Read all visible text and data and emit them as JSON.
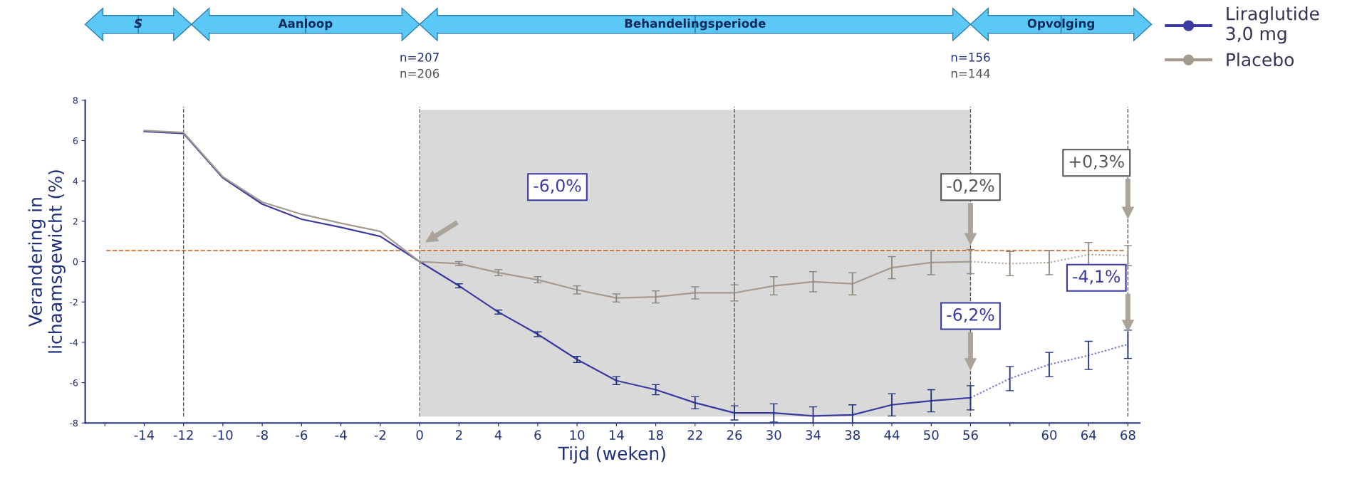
{
  "chart_data": {
    "type": "line",
    "xlabel": "Tijd (weken)",
    "ylabel": "Verandering in\nlichaamsgewicht (%)",
    "categories": [
      null,
      "-14",
      "-12",
      "-10",
      "-8",
      "-6",
      "-4",
      "-2",
      "0",
      "2",
      "4",
      "6",
      "10",
      "14",
      "18",
      "22",
      "26",
      "30",
      "34",
      "38",
      "44",
      "50",
      "56",
      null,
      "60",
      "64",
      "68"
    ],
    "series": [
      {
        "name": "Liraglutide\n3,0 mg",
        "color": "#3b3aa0",
        "line_style": "solid",
        "values": [
          null,
          6.45,
          6.35,
          4.15,
          2.85,
          2.1,
          1.7,
          1.25,
          0,
          -1.2,
          -2.5,
          -3.6,
          -4.85,
          -5.9,
          -6.35,
          -7.0,
          -7.5,
          -7.5,
          -7.65,
          -7.6,
          -7.1,
          -6.9,
          -6.75,
          null,
          null,
          null,
          null
        ],
        "errors": [
          null,
          null,
          null,
          null,
          null,
          null,
          null,
          null,
          null,
          0.1,
          0.1,
          0.12,
          0.15,
          0.2,
          0.25,
          0.3,
          0.35,
          0.45,
          0.45,
          0.5,
          0.55,
          0.55,
          0.6,
          null,
          null,
          null,
          null
        ]
      },
      {
        "name": "Placebo",
        "color": "#a59a8f",
        "line_style": "solid",
        "values": [
          null,
          6.5,
          6.4,
          4.2,
          2.95,
          2.35,
          1.9,
          1.5,
          0,
          -0.1,
          -0.55,
          -0.9,
          -1.4,
          -1.8,
          -1.75,
          -1.55,
          -1.55,
          -1.2,
          -1.0,
          -1.1,
          -0.3,
          -0.05,
          0.0,
          null,
          null,
          null,
          null
        ],
        "errors": [
          null,
          null,
          null,
          null,
          null,
          null,
          null,
          null,
          null,
          0.1,
          0.15,
          0.15,
          0.2,
          0.2,
          0.3,
          0.3,
          0.4,
          0.45,
          0.5,
          0.55,
          0.55,
          0.6,
          0.6,
          null,
          null,
          null,
          null
        ]
      },
      {
        "color": "#7b7ad6",
        "line_style": "dotted",
        "values": [
          null,
          null,
          null,
          null,
          null,
          null,
          null,
          null,
          null,
          null,
          null,
          null,
          null,
          null,
          null,
          null,
          null,
          null,
          null,
          null,
          null,
          null,
          -6.75,
          -5.8,
          -5.1,
          -4.65,
          -4.1
        ],
        "errors": [
          null,
          null,
          null,
          null,
          null,
          null,
          null,
          null,
          null,
          null,
          null,
          null,
          null,
          null,
          null,
          null,
          null,
          null,
          null,
          null,
          null,
          null,
          null,
          0.6,
          0.6,
          0.7,
          0.7
        ]
      },
      {
        "color": "#b8aea4",
        "line_style": "dotted",
        "values": [
          null,
          null,
          null,
          null,
          null,
          null,
          null,
          null,
          null,
          null,
          null,
          null,
          null,
          null,
          null,
          null,
          null,
          null,
          null,
          null,
          null,
          null,
          0.0,
          -0.1,
          -0.05,
          0.35,
          0.3
        ],
        "errors": [
          null,
          null,
          null,
          null,
          null,
          null,
          null,
          null,
          null,
          null,
          null,
          null,
          null,
          null,
          null,
          null,
          null,
          null,
          null,
          null,
          null,
          null,
          null,
          0.6,
          0.6,
          0.6,
          0.5
        ]
      }
    ],
    "ylim": [
      -8,
      8
    ],
    "yticks": [
      -8,
      -6,
      -4,
      -2,
      0,
      2,
      4,
      6,
      8
    ],
    "grid": false,
    "legend": "top right",
    "ref_lines": [
      {
        "axis": "y",
        "value": 0.55,
        "color": "#c55a11",
        "line_style": "dashed"
      },
      {
        "axis": "x",
        "value": "-12",
        "color": "#555555",
        "line_style": "dashed"
      },
      {
        "axis": "x",
        "value": "0",
        "color": "#777777",
        "line_style": "dashed"
      },
      {
        "axis": "x",
        "value": "26",
        "color": "#555555",
        "line_style": "dashed"
      },
      {
        "axis": "x",
        "value": "56",
        "color": "#555555",
        "line_style": "dashed"
      },
      {
        "axis": "x",
        "value": "68",
        "color": "#555555",
        "line_style": "dashed"
      }
    ],
    "bands": [
      {
        "axis": "x",
        "from": "0",
        "to": "56",
        "color": "#d9d9d9"
      }
    ],
    "annotations": [
      "S",
      "Aanloop",
      "Behandelingsperiode",
      "Opvolging",
      "n=207",
      "n=206",
      "n=156",
      "n=144",
      "-6,0%",
      "-0,2%",
      "+0,3%",
      "-6,2%",
      "-4,1%"
    ]
  }
}
